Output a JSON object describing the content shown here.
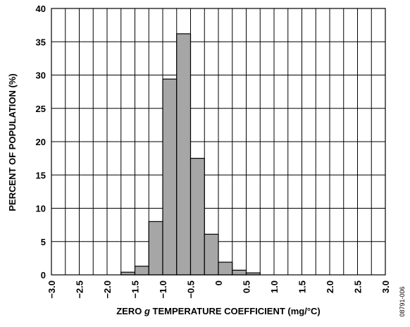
{
  "chart_data": {
    "type": "bar",
    "xlabel": "ZERO g TEMPERATURE COEFFICIENT (mg/°C)",
    "xlabel_parts": {
      "before": "ZERO ",
      "italic": "g",
      "after": " TEMPERATURE COEFFICIENT (mg/°C)"
    },
    "ylabel": "PERCENT OF POPULATION (%)",
    "xlim": [
      -3.0,
      3.0
    ],
    "ylim": [
      0,
      40
    ],
    "x_ticks": [
      -3.0,
      -2.5,
      -2.0,
      -1.5,
      -1.0,
      -0.5,
      0,
      0.5,
      1.0,
      1.5,
      2.0,
      2.5,
      3.0
    ],
    "x_tick_labels": [
      "−3.0",
      "−2.5",
      "−2.0",
      "−1.5",
      "−1.0",
      "−0.5",
      "0",
      "0.5",
      "1.0",
      "1.5",
      "2.0",
      "2.5",
      "3.0"
    ],
    "y_ticks": [
      0,
      5,
      10,
      15,
      20,
      25,
      30,
      35,
      40
    ],
    "y_tick_labels": [
      "0",
      "5",
      "10",
      "15",
      "20",
      "25",
      "30",
      "35",
      "40"
    ],
    "x_grid_step": 0.25,
    "y_grid_step": 5,
    "bin_width": 0.25,
    "bins": [
      {
        "x_start": -1.75,
        "x_end": -1.5,
        "value": 0.4
      },
      {
        "x_start": -1.5,
        "x_end": -1.25,
        "value": 1.3
      },
      {
        "x_start": -1.25,
        "x_end": -1.0,
        "value": 8.0
      },
      {
        "x_start": -1.0,
        "x_end": -0.75,
        "value": 29.4
      },
      {
        "x_start": -0.75,
        "x_end": -0.5,
        "value": 36.2
      },
      {
        "x_start": -0.5,
        "x_end": -0.25,
        "value": 17.5
      },
      {
        "x_start": -0.25,
        "x_end": 0,
        "value": 6.1
      },
      {
        "x_start": 0,
        "x_end": 0.25,
        "value": 1.9
      },
      {
        "x_start": 0.25,
        "x_end": 0.5,
        "value": 0.7
      },
      {
        "x_start": 0.5,
        "x_end": 0.75,
        "value": 0.3
      }
    ],
    "grid": true,
    "colors": {
      "bar_fill": "#a6a6a6",
      "bar_stroke": "#000000",
      "grid": "#000000",
      "background": "#ffffff"
    }
  },
  "figure_code": "08791-006"
}
